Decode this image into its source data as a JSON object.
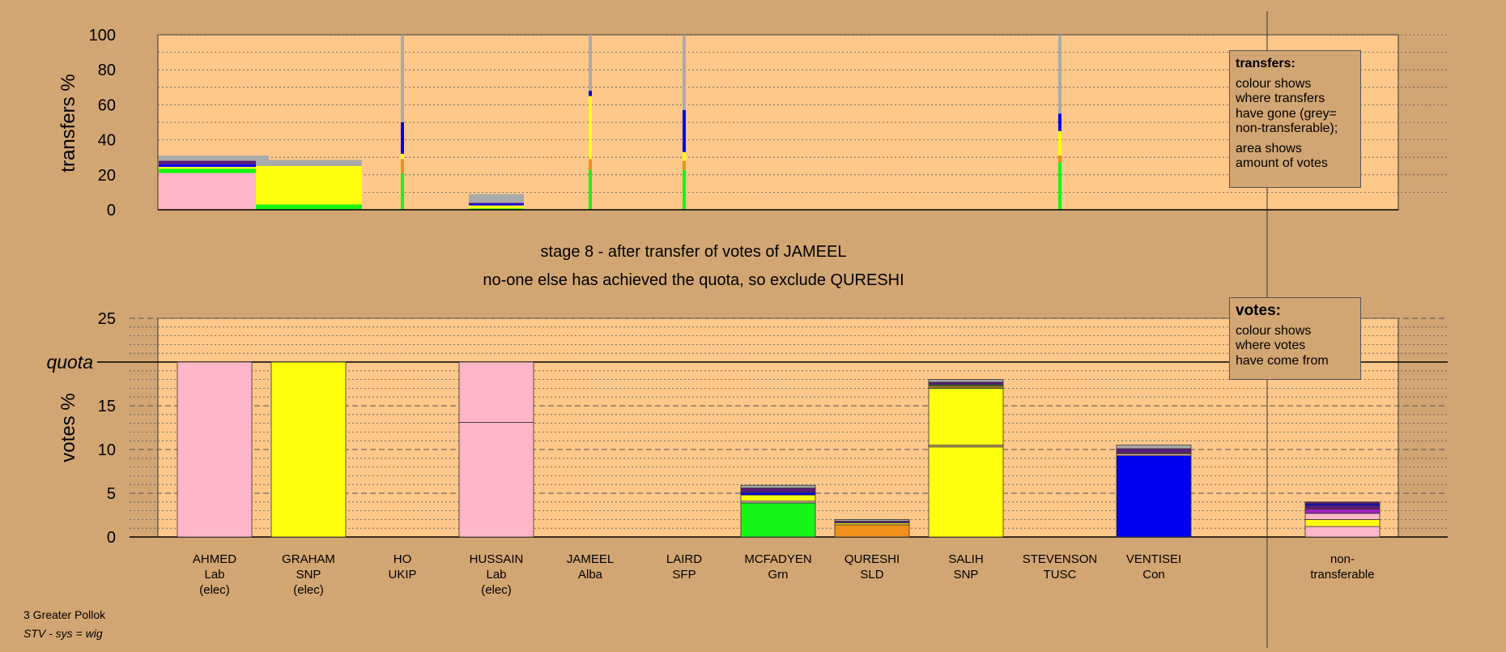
{
  "chart_data": [
    {
      "type": "bar",
      "stacked": true,
      "ylabel": "transfers %",
      "ylim": [
        0,
        100
      ],
      "yticks": [
        0,
        20,
        40,
        60,
        80,
        100
      ],
      "grid": "dotted every 10",
      "legend": {
        "title": "transfers:",
        "lines1": [
          "colour shows",
          "where transfers",
          "have gone (grey=",
          "non-transferable);"
        ],
        "lines2": [
          "area shows",
          "amount of votes"
        ],
        "placement": "top-right"
      },
      "bars": [
        {
          "candidate": "AHMED",
          "segments": [
            {
              "color": "#ffb6c8",
              "value": 21
            },
            {
              "color": "#16f516",
              "value": 2.5
            },
            {
              "color": "#ffff10",
              "value": 1
            },
            {
              "color": "#0000ee",
              "value": 1.5
            },
            {
              "color": "#5a1a7a",
              "value": 2
            },
            {
              "color": "#aaaaaa",
              "value": 3
            }
          ]
        },
        {
          "candidate": "GRAHAM",
          "segments": [
            {
              "color": "#16f516",
              "value": 3
            },
            {
              "color": "#ffff10",
              "value": 22
            },
            {
              "color": "#aaaaaa",
              "value": 3.5
            }
          ]
        },
        {
          "candidate": "HO",
          "segments": [
            {
              "color": "#16f516",
              "value": 21
            },
            {
              "color": "#f0901a",
              "value": 8
            },
            {
              "color": "#ffff10",
              "value": 3
            },
            {
              "color": "#0000ee",
              "value": 18
            },
            {
              "color": "#aaaaaa",
              "value": 50
            }
          ]
        },
        {
          "candidate": "HUSSAIN",
          "segments": [
            {
              "color": "#16f516",
              "value": 0.8
            },
            {
              "color": "#ffff10",
              "value": 1.7
            },
            {
              "color": "#0000ee",
              "value": 1
            },
            {
              "color": "#5a1a7a",
              "value": 0.5
            },
            {
              "color": "#aaaaaa",
              "value": 5
            }
          ]
        },
        {
          "candidate": "JAMEEL",
          "segments": [
            {
              "color": "#16f516",
              "value": 23
            },
            {
              "color": "#f0901a",
              "value": 6
            },
            {
              "color": "#ffff10",
              "value": 36
            },
            {
              "color": "#0000ee",
              "value": 3
            },
            {
              "color": "#aaaaaa",
              "value": 32
            }
          ]
        },
        {
          "candidate": "LAIRD",
          "segments": [
            {
              "color": "#16f516",
              "value": 23
            },
            {
              "color": "#f0901a",
              "value": 5
            },
            {
              "color": "#ffff10",
              "value": 5
            },
            {
              "color": "#0000ee",
              "value": 24
            },
            {
              "color": "#aaaaaa",
              "value": 43
            }
          ]
        },
        {
          "candidate": "STEVENSON",
          "segments": [
            {
              "color": "#16f516",
              "value": 27
            },
            {
              "color": "#f0901a",
              "value": 4
            },
            {
              "color": "#ffff10",
              "value": 14
            },
            {
              "color": "#0000ee",
              "value": 10
            },
            {
              "color": "#aaaaaa",
              "value": 45
            }
          ]
        }
      ]
    },
    {
      "type": "bar",
      "stacked": true,
      "ylabel": "votes %",
      "ylim": [
        0,
        25
      ],
      "yticks": [
        0,
        5,
        10,
        15,
        20,
        25
      ],
      "quota": 20,
      "quota_label": "quota",
      "grid": "dotted every 1, dashed every 5",
      "legend": {
        "title": "votes:",
        "lines1": [
          "colour shows",
          "where votes",
          "have come from"
        ],
        "placement": "top-right"
      },
      "categories": [
        {
          "name": "AHMED",
          "party": "Lab",
          "note": "(elec)"
        },
        {
          "name": "GRAHAM",
          "party": "SNP",
          "note": "(elec)"
        },
        {
          "name": "HO",
          "party": "UKIP",
          "note": ""
        },
        {
          "name": "HUSSAIN",
          "party": "Lab",
          "note": "(elec)"
        },
        {
          "name": "JAMEEL",
          "party": "Alba",
          "note": ""
        },
        {
          "name": "LAIRD",
          "party": "SFP",
          "note": ""
        },
        {
          "name": "MCFADYEN",
          "party": "Grn",
          "note": ""
        },
        {
          "name": "QURESHI",
          "party": "SLD",
          "note": ""
        },
        {
          "name": "SALIH",
          "party": "SNP",
          "note": ""
        },
        {
          "name": "STEVENSON",
          "party": "TUSC",
          "note": ""
        },
        {
          "name": "VENTISEI",
          "party": "Con",
          "note": ""
        }
      ],
      "nontransferable_label": [
        "non-",
        "transferable"
      ],
      "bars": [
        [
          {
            "color": "#ffb6c8",
            "value": 20
          }
        ],
        [
          {
            "color": "#ffff10",
            "value": 20
          }
        ],
        [],
        [
          {
            "color": "#ffb6c8",
            "value": 13.1
          },
          {
            "color": "#ffb6c8",
            "value": 6.9
          }
        ],
        [],
        [],
        [
          {
            "color": "#16f516",
            "value": 3.9
          },
          {
            "color": "#ffb6c8",
            "value": 0.2
          },
          {
            "color": "#ffff10",
            "value": 0.7
          },
          {
            "color": "#0000ee",
            "value": 0.3
          },
          {
            "color": "#5a1a7a",
            "value": 0.5
          },
          {
            "color": "#aaaaaa",
            "value": 0.3
          }
        ],
        [
          {
            "color": "#f0901a",
            "value": 1.4
          },
          {
            "color": "#ffff10",
            "value": 0.2
          },
          {
            "color": "#5a1a7a",
            "value": 0.2
          },
          {
            "color": "#aaaaaa",
            "value": 0.2
          }
        ],
        [
          {
            "color": "#ffff10",
            "value": 10.3
          },
          {
            "color": "#d2a673",
            "value": 0.2
          },
          {
            "color": "#ffff10",
            "value": 6.5
          },
          {
            "color": "#a07a20",
            "value": 0.3
          },
          {
            "color": "#16f516",
            "value": 0.1
          },
          {
            "color": "#5a1a7a",
            "value": 0.3
          },
          {
            "color": "#aaaaaa",
            "value": 0.3
          }
        ],
        [],
        [
          {
            "color": "#0000ee",
            "value": 9.3
          },
          {
            "color": "#ffb6c8",
            "value": 0.2
          },
          {
            "color": "#ffff10",
            "value": 0.1
          },
          {
            "color": "#5a1a7a",
            "value": 0.5
          },
          {
            "color": "#aaaaaa",
            "value": 0.4
          }
        ],
        [],
        [
          {
            "color": "#ffb6c8",
            "value": 1.2
          },
          {
            "color": "#ffff10",
            "value": 0.8
          },
          {
            "color": "#ffb6c8",
            "value": 0.7
          },
          {
            "color": "#a020c0",
            "value": 0.5
          },
          {
            "color": "#5a1a7a",
            "value": 0.4
          },
          {
            "color": "#0000ee",
            "value": 0.2
          },
          {
            "color": "#5a1a7a",
            "value": 0.2
          }
        ]
      ]
    }
  ],
  "captions": {
    "stage": "stage 8 - after transfer of votes of JAMEEL",
    "decision": "no-one else has achieved the quota, so exclude QURESHI"
  },
  "footer": {
    "constituency": "3 Greater Pollok",
    "system": "STV - sys = wig"
  },
  "colors": {
    "background": "#d2a673",
    "plot": "#fdc88a"
  }
}
